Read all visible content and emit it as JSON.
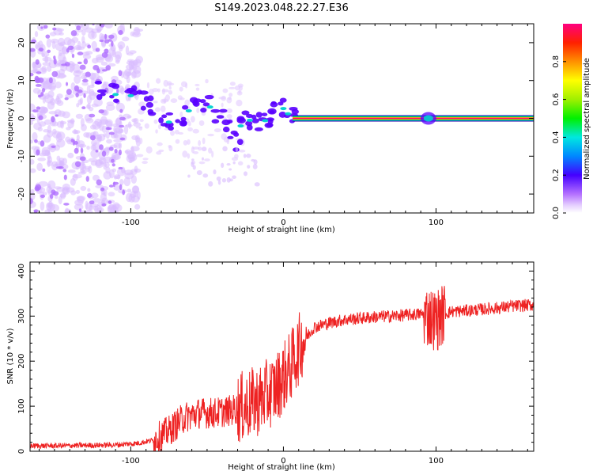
{
  "chart_data": [
    {
      "type": "heatmap",
      "title": "S149.2023.048.22.27.E36",
      "xlabel": "Height of straight line (km)",
      "ylabel": "Frequency (Hz)",
      "xlim": [
        -166,
        164
      ],
      "ylim": [
        -25,
        25
      ],
      "xticks": [
        -100,
        0,
        100
      ],
      "xtick_labels": [
        "-100",
        "0",
        "100"
      ],
      "yticks": [
        -20,
        -10,
        0,
        10,
        20
      ],
      "ytick_labels": [
        "-20",
        "-10",
        "0",
        "10",
        "20"
      ],
      "colorbar": {
        "label": "Normalized spectral amplitude",
        "range": [
          0,
          1
        ],
        "ticks": [
          0.0,
          0.2,
          0.4,
          0.6,
          0.8
        ],
        "tick_labels": [
          "0.0",
          "0.2",
          "0.4",
          "0.6",
          "0.8"
        ]
      },
      "features": [
        {
          "name": "steady carrier",
          "x_range": [
            6,
            164
          ],
          "frequency": 0,
          "amplitude": 1.0
        },
        {
          "name": "carrier burst",
          "x_range": [
            90,
            100
          ],
          "frequency": 0,
          "amplitude": 0.5
        },
        {
          "name": "noise floor",
          "x_range": [
            -166,
            -95
          ],
          "amplitude": 0.12
        }
      ]
    },
    {
      "type": "line",
      "xlabel": "Height of straight line (km)",
      "ylabel": "SNR (10 * v/v)",
      "xlim": [
        -166,
        164
      ],
      "ylim": [
        0,
        420
      ],
      "xticks": [
        -100,
        0,
        100
      ],
      "xtick_labels": [
        "-100",
        "0",
        "100"
      ],
      "yticks": [
        0,
        100,
        200,
        300,
        400
      ],
      "ytick_labels": [
        "0",
        "100",
        "200",
        "300",
        "400"
      ],
      "series": [
        {
          "name": "SNR",
          "color": "#ee2222",
          "x": [
            -166,
            -150,
            -130,
            -110,
            -95,
            -85,
            -75,
            -65,
            -55,
            -45,
            -35,
            -25,
            -15,
            -5,
            5,
            12,
            20,
            30,
            40,
            50,
            60,
            70,
            80,
            90,
            95,
            100,
            105,
            110,
            120,
            130,
            140,
            150,
            164
          ],
          "y": [
            12,
            12,
            13,
            14,
            18,
            25,
            45,
            75,
            85,
            85,
            90,
            100,
            115,
            140,
            190,
            240,
            275,
            285,
            292,
            295,
            298,
            300,
            302,
            305,
            300,
            290,
            305,
            310,
            312,
            315,
            318,
            322,
            325
          ]
        }
      ]
    }
  ]
}
